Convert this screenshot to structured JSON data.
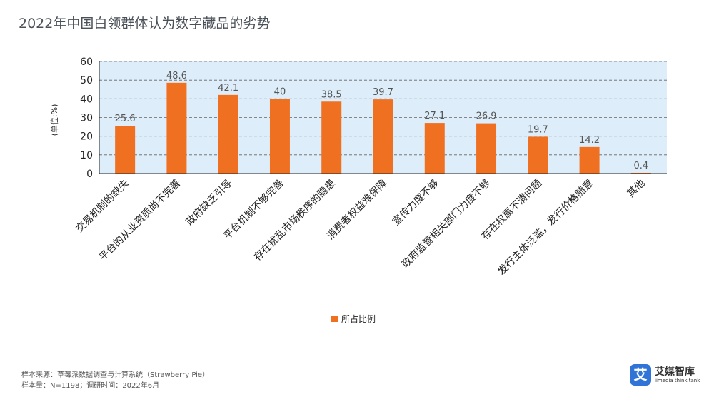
{
  "title": "2022年中国白领群体认为数字藏品的劣势",
  "footnotes": {
    "source": "样本来源：草莓派数据调查与计算系统（Strawberry Pie）",
    "sample": "样本量：N=1198；调研时间：2022年6月"
  },
  "logo": {
    "mark": "艾",
    "name": "艾媒智库",
    "tagline": "iimedia think tank"
  },
  "colors": {
    "bar": "#f07022",
    "plot_background": "#ddeefa",
    "grid": "#666666",
    "axis": "#222222"
  },
  "chart_data": {
    "type": "bar",
    "title": "2022年中国白领群体认为数字藏品的劣势",
    "ylabel": "(单位:%)",
    "xlabel": "",
    "ylim": [
      0,
      60
    ],
    "yticks": [
      0,
      10,
      20,
      30,
      40,
      50,
      60
    ],
    "grid": true,
    "legend_position": "bottom",
    "categories": [
      "交易机制的缺失",
      "平台的从业资质尚不完善",
      "政府缺乏引导",
      "平台机制不够完善",
      "存在扰乱市场秩序的隐患",
      "消费者权益难保障",
      "宣传力度不够",
      "政府监管相关部门力度不够",
      "存在权属不清问题",
      "发行主体泛滥，发行价格随意",
      "其他"
    ],
    "series": [
      {
        "name": "所占比例",
        "values": [
          25.6,
          48.6,
          42.1,
          40,
          38.5,
          39.7,
          27.1,
          26.9,
          19.7,
          14.2,
          0.4
        ],
        "labels": [
          "25.6",
          "48.6",
          "42.1",
          "40",
          "38.5",
          "39.7",
          "27.1",
          "26.9",
          "19.7",
          "14.2",
          "0.4"
        ]
      }
    ]
  }
}
